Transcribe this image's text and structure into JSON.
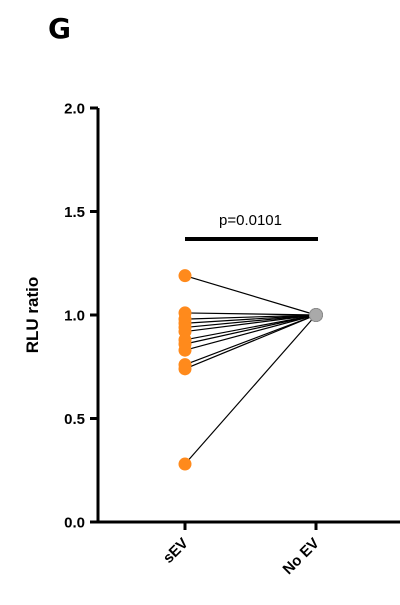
{
  "panel_letter": "G",
  "colors": {
    "sev": "#ff8a1c",
    "noev": "#a9a9a9",
    "axis": "#000000",
    "line": "#000000"
  },
  "chart_data": {
    "type": "scatter",
    "title": "",
    "xlabel": "",
    "ylabel": "RLU ratio",
    "categories": [
      "sEV",
      "No EV"
    ],
    "ylim": [
      0.0,
      2.0
    ],
    "yticks": [
      0.0,
      0.5,
      1.0,
      1.5,
      2.0
    ],
    "ytick_labels": [
      "0.0",
      "0.5",
      "1.0",
      "1.5",
      "2.0"
    ],
    "grid": false,
    "legend": "none",
    "paired": true,
    "series": [
      {
        "values": [
          1.19,
          1.01,
          0.98,
          0.96,
          0.94,
          0.92,
          0.88,
          0.86,
          0.83,
          0.76,
          0.74,
          0.28
        ]
      },
      {
        "values": [
          1.0,
          1.0,
          1.0,
          1.0,
          1.0,
          1.0,
          1.0,
          1.0,
          1.0,
          1.0,
          1.0,
          1.0
        ]
      }
    ],
    "annotations": [
      {
        "text": "p=0.0101",
        "type": "significance-bracket",
        "between": [
          "sEV",
          "No EV"
        ]
      }
    ]
  }
}
